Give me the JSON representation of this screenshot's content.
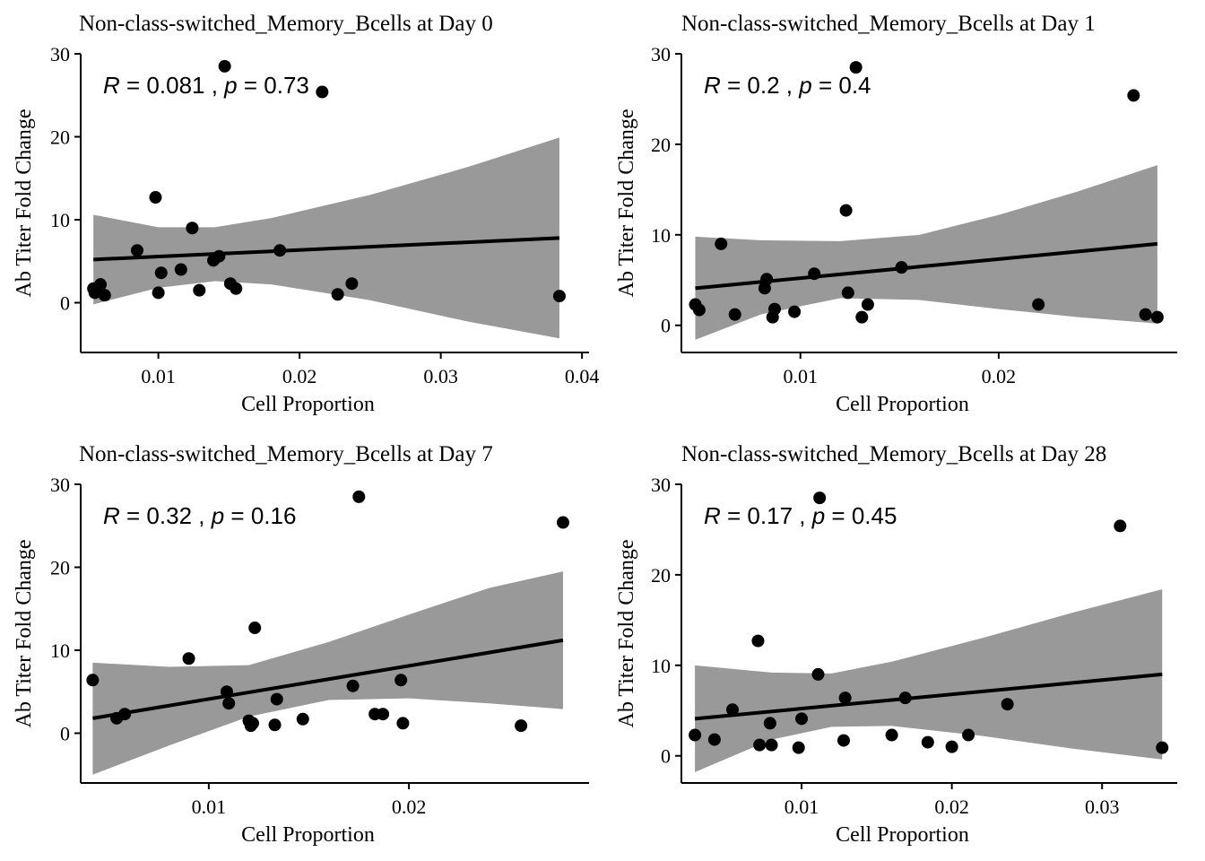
{
  "figure": {
    "background": "#ffffff",
    "colors": {
      "points": "#000000",
      "fit_line": "#000000",
      "confidence_band": "#999999",
      "axes": "#000000"
    }
  },
  "chart_data": [
    {
      "type": "scatter",
      "title": "Non-class-switched_Memory_Bcells at Day 0",
      "xlabel": "Cell Proportion",
      "ylabel": "Ab Titer Fold Change",
      "xlim": [
        0.0045,
        0.0405
      ],
      "ylim": [
        -6,
        30
      ],
      "xticks": [
        0.01,
        0.02,
        0.03,
        0.04
      ],
      "xtick_labels": [
        "0.01",
        "0.02",
        "0.03",
        "0.04"
      ],
      "yticks": [
        0,
        10,
        20,
        30
      ],
      "ytick_labels": [
        "0",
        "10",
        "20",
        "30"
      ],
      "stat_r": "0.081",
      "stat_p": "0.73",
      "points": [
        {
          "x": 0.0054,
          "y": 1.7
        },
        {
          "x": 0.0055,
          "y": 1.2
        },
        {
          "x": 0.0059,
          "y": 2.2
        },
        {
          "x": 0.0062,
          "y": 0.9
        },
        {
          "x": 0.0085,
          "y": 6.3
        },
        {
          "x": 0.0098,
          "y": 12.7
        },
        {
          "x": 0.01,
          "y": 1.2
        },
        {
          "x": 0.0102,
          "y": 3.6
        },
        {
          "x": 0.0116,
          "y": 4.0
        },
        {
          "x": 0.0124,
          "y": 9.0
        },
        {
          "x": 0.0129,
          "y": 1.5
        },
        {
          "x": 0.0139,
          "y": 5.1
        },
        {
          "x": 0.0143,
          "y": 5.6
        },
        {
          "x": 0.0147,
          "y": 28.5
        },
        {
          "x": 0.0151,
          "y": 2.3
        },
        {
          "x": 0.0155,
          "y": 1.7
        },
        {
          "x": 0.0186,
          "y": 6.3
        },
        {
          "x": 0.0216,
          "y": 25.4
        },
        {
          "x": 0.0227,
          "y": 1.0
        },
        {
          "x": 0.0237,
          "y": 2.3
        },
        {
          "x": 0.0384,
          "y": 0.8
        }
      ],
      "fit": {
        "x": [
          0.0054,
          0.0384
        ],
        "y": [
          5.2,
          7.8
        ]
      },
      "band": {
        "x": [
          0.0054,
          0.01,
          0.014,
          0.018,
          0.025,
          0.032,
          0.0384
        ],
        "lower": [
          -0.2,
          1.8,
          2.6,
          2.2,
          0.3,
          -2.3,
          -4.3
        ],
        "upper": [
          10.6,
          9.1,
          9.1,
          10.2,
          13.0,
          16.4,
          19.9
        ]
      }
    },
    {
      "type": "scatter",
      "title": "Non-class-switched_Memory_Bcells at Day 1",
      "xlabel": "Cell Proportion",
      "ylabel": "Ab Titer Fold Change",
      "xlim": [
        0.004,
        0.029
      ],
      "ylim": [
        -3,
        30
      ],
      "xticks": [
        0.01,
        0.02
      ],
      "xtick_labels": [
        "0.01",
        "0.02"
      ],
      "yticks": [
        0,
        10,
        20,
        30
      ],
      "ytick_labels": [
        "0",
        "10",
        "20",
        "30"
      ],
      "stat_r": "0.2",
      "stat_p": "0.4",
      "points": [
        {
          "x": 0.0047,
          "y": 2.3
        },
        {
          "x": 0.0049,
          "y": 1.7
        },
        {
          "x": 0.006,
          "y": 9.0
        },
        {
          "x": 0.0067,
          "y": 1.2
        },
        {
          "x": 0.0082,
          "y": 4.1
        },
        {
          "x": 0.0083,
          "y": 5.1
        },
        {
          "x": 0.0086,
          "y": 0.9
        },
        {
          "x": 0.0087,
          "y": 1.8
        },
        {
          "x": 0.0097,
          "y": 1.5
        },
        {
          "x": 0.0107,
          "y": 5.7
        },
        {
          "x": 0.0123,
          "y": 12.7
        },
        {
          "x": 0.0124,
          "y": 3.6
        },
        {
          "x": 0.0128,
          "y": 28.5
        },
        {
          "x": 0.0131,
          "y": 0.9
        },
        {
          "x": 0.0134,
          "y": 2.3
        },
        {
          "x": 0.0151,
          "y": 6.4
        },
        {
          "x": 0.022,
          "y": 2.3
        },
        {
          "x": 0.0268,
          "y": 25.4
        },
        {
          "x": 0.0274,
          "y": 1.2
        },
        {
          "x": 0.028,
          "y": 0.9
        }
      ],
      "fit": {
        "x": [
          0.0047,
          0.028
        ],
        "y": [
          4.1,
          9.0
        ]
      },
      "band": {
        "x": [
          0.0047,
          0.008,
          0.012,
          0.016,
          0.02,
          0.024,
          0.028
        ],
        "lower": [
          -1.6,
          1.2,
          3.0,
          2.8,
          1.8,
          0.9,
          0.2
        ],
        "upper": [
          9.8,
          9.4,
          9.3,
          10.0,
          12.2,
          14.8,
          17.7
        ]
      }
    },
    {
      "type": "scatter",
      "title": "Non-class-switched_Memory_Bcells at Day 7",
      "xlabel": "Cell Proportion",
      "ylabel": "Ab Titer Fold Change",
      "xlim": [
        0.0036,
        0.029
      ],
      "ylim": [
        -6,
        30
      ],
      "xticks": [
        0.01,
        0.02
      ],
      "xtick_labels": [
        "0.01",
        "0.02"
      ],
      "yticks": [
        0,
        10,
        20,
        30
      ],
      "ytick_labels": [
        "0",
        "10",
        "20",
        "30"
      ],
      "stat_r": "0.32",
      "stat_p": "0.16",
      "points": [
        {
          "x": 0.0042,
          "y": 6.4
        },
        {
          "x": 0.0054,
          "y": 1.8
        },
        {
          "x": 0.0058,
          "y": 2.3
        },
        {
          "x": 0.009,
          "y": 9.0
        },
        {
          "x": 0.0109,
          "y": 5.0
        },
        {
          "x": 0.011,
          "y": 3.6
        },
        {
          "x": 0.012,
          "y": 1.5
        },
        {
          "x": 0.0121,
          "y": 0.9
        },
        {
          "x": 0.0122,
          "y": 1.2
        },
        {
          "x": 0.0123,
          "y": 12.7
        },
        {
          "x": 0.0133,
          "y": 1.0
        },
        {
          "x": 0.0134,
          "y": 4.1
        },
        {
          "x": 0.0147,
          "y": 1.7
        },
        {
          "x": 0.0172,
          "y": 5.7
        },
        {
          "x": 0.0175,
          "y": 28.5
        },
        {
          "x": 0.0183,
          "y": 2.3
        },
        {
          "x": 0.0187,
          "y": 2.3
        },
        {
          "x": 0.0196,
          "y": 6.4
        },
        {
          "x": 0.0197,
          "y": 1.2
        },
        {
          "x": 0.0256,
          "y": 0.9
        },
        {
          "x": 0.0277,
          "y": 25.4
        }
      ],
      "fit": {
        "x": [
          0.0042,
          0.0277
        ],
        "y": [
          1.8,
          11.2
        ]
      },
      "band": {
        "x": [
          0.0042,
          0.008,
          0.012,
          0.016,
          0.02,
          0.024,
          0.0277
        ],
        "lower": [
          -5.0,
          -1.5,
          2.0,
          4.0,
          4.2,
          3.6,
          2.9
        ],
        "upper": [
          8.5,
          8.0,
          8.2,
          11.0,
          14.3,
          17.5,
          19.5
        ]
      }
    },
    {
      "type": "scatter",
      "title": "Non-class-switched_Memory_Bcells at Day 28",
      "xlabel": "Cell Proportion",
      "ylabel": "Ab Titer Fold Change",
      "xlim": [
        0.002,
        0.035
      ],
      "ylim": [
        -3,
        30
      ],
      "xticks": [
        0.01,
        0.02,
        0.03
      ],
      "xtick_labels": [
        "0.01",
        "0.02",
        "0.03"
      ],
      "yticks": [
        0,
        10,
        20,
        30
      ],
      "ytick_labels": [
        "0",
        "10",
        "20",
        "30"
      ],
      "stat_r": "0.17",
      "stat_p": "0.45",
      "points": [
        {
          "x": 0.0029,
          "y": 2.3
        },
        {
          "x": 0.0042,
          "y": 1.8
        },
        {
          "x": 0.0054,
          "y": 5.1
        },
        {
          "x": 0.0071,
          "y": 12.7
        },
        {
          "x": 0.0072,
          "y": 1.2
        },
        {
          "x": 0.0079,
          "y": 3.6
        },
        {
          "x": 0.008,
          "y": 1.2
        },
        {
          "x": 0.0098,
          "y": 0.9
        },
        {
          "x": 0.01,
          "y": 4.1
        },
        {
          "x": 0.0111,
          "y": 9.0
        },
        {
          "x": 0.0112,
          "y": 28.5
        },
        {
          "x": 0.0128,
          "y": 1.7
        },
        {
          "x": 0.0129,
          "y": 6.4
        },
        {
          "x": 0.016,
          "y": 2.3
        },
        {
          "x": 0.0169,
          "y": 6.4
        },
        {
          "x": 0.0184,
          "y": 1.5
        },
        {
          "x": 0.02,
          "y": 1.0
        },
        {
          "x": 0.0211,
          "y": 2.3
        },
        {
          "x": 0.0237,
          "y": 5.7
        },
        {
          "x": 0.0312,
          "y": 25.4
        },
        {
          "x": 0.034,
          "y": 0.9
        }
      ],
      "fit": {
        "x": [
          0.0029,
          0.034
        ],
        "y": [
          4.1,
          9.0
        ]
      },
      "band": {
        "x": [
          0.0029,
          0.008,
          0.012,
          0.016,
          0.022,
          0.028,
          0.034
        ],
        "lower": [
          -1.8,
          1.8,
          3.2,
          3.3,
          2.2,
          0.8,
          -0.4
        ],
        "upper": [
          10.0,
          9.2,
          9.1,
          10.4,
          13.0,
          15.8,
          18.4
        ]
      }
    }
  ]
}
